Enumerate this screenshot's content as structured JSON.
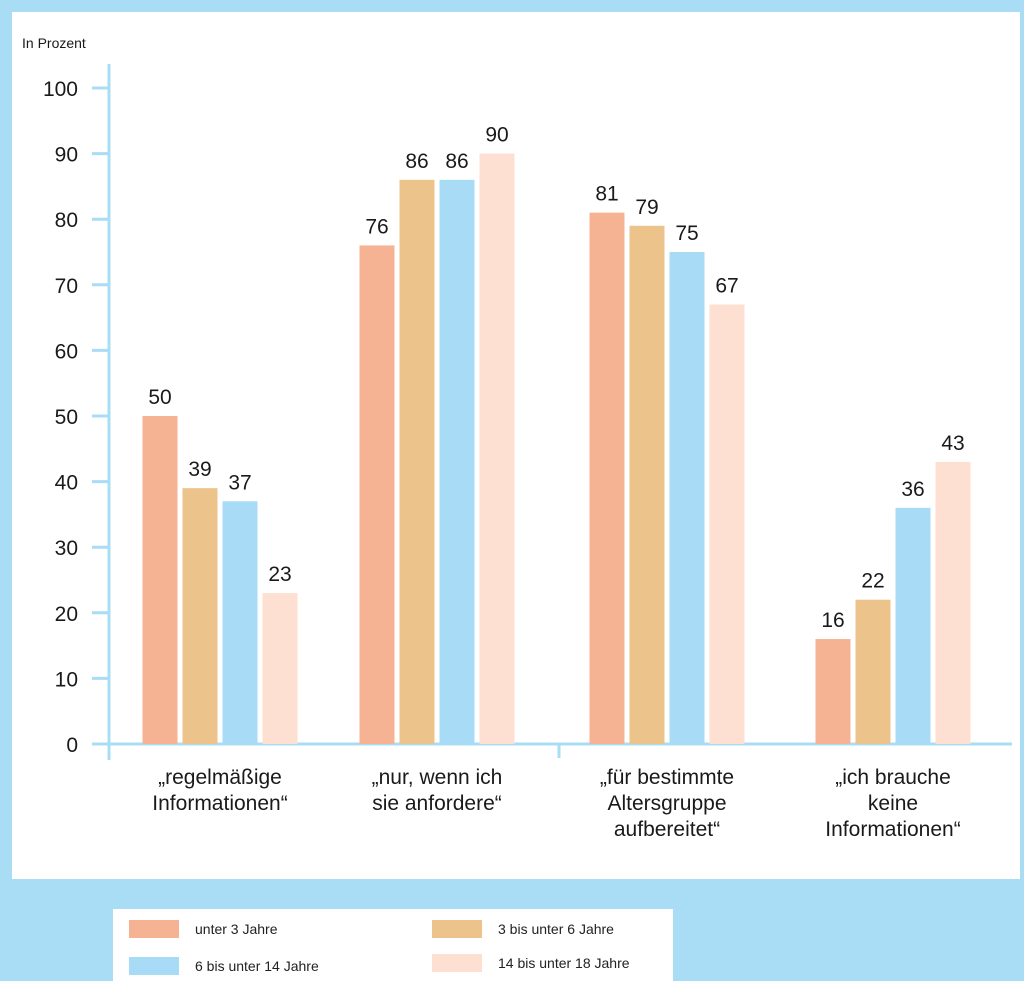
{
  "chart_data": {
    "type": "bar",
    "ylabel": "In Prozent",
    "ylim": [
      0,
      100
    ],
    "yticks": [
      0,
      10,
      20,
      30,
      40,
      50,
      60,
      70,
      80,
      90,
      100
    ],
    "categories": [
      [
        "„regelmäßige",
        "Informationen“"
      ],
      [
        "„nur, wenn ich",
        "sie anfordere“"
      ],
      [
        "„für bestimmte",
        "Altersgruppe",
        "aufbereitet“"
      ],
      [
        "„ich brauche",
        "keine",
        "Informationen“"
      ]
    ],
    "series": [
      {
        "name": "unter 3 Jahre",
        "color": "#f6b394",
        "values": [
          50,
          76,
          81,
          16
        ]
      },
      {
        "name": "3 bis unter 6 Jahre",
        "color": "#ecc38b",
        "values": [
          39,
          86,
          79,
          22
        ]
      },
      {
        "name": "6 bis unter 14 Jahre",
        "color": "#a8dbf6",
        "values": [
          37,
          86,
          75,
          36
        ]
      },
      {
        "name": "14 bis unter 18 Jahre",
        "color": "#fde0d2",
        "values": [
          23,
          90,
          67,
          43
        ]
      }
    ],
    "legend_position": "bottom",
    "grid": false
  },
  "colors": {
    "background": "#a9dcf5",
    "panel": "#ffffff",
    "axis": "#a9dcf5",
    "text": "#1a1a1a"
  }
}
